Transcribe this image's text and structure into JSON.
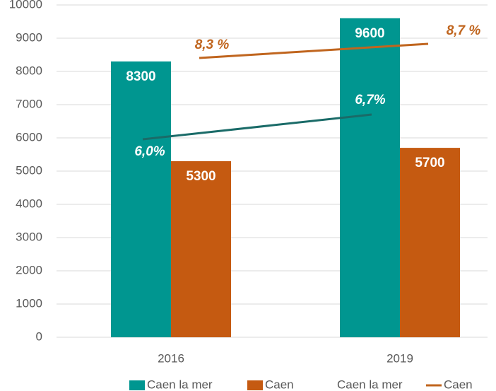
{
  "chart_data": {
    "type": "bar",
    "categories": [
      "2016",
      "2019"
    ],
    "series": [
      {
        "name": "Caen la mer",
        "type": "bar",
        "color": "#009690",
        "values": [
          8300,
          9600
        ]
      },
      {
        "name": "Caen",
        "type": "bar",
        "color": "#c55a11",
        "values": [
          5300,
          5700
        ]
      },
      {
        "name": "Caen la mer",
        "type": "line",
        "axis": "y2",
        "color": "#1a6b68",
        "label_color": "#ffffff",
        "values": [
          6.0,
          6.7
        ],
        "value_labels": [
          "6,0%",
          "6,7%"
        ]
      },
      {
        "name": "Caen",
        "type": "line",
        "axis": "y2",
        "color": "#c0651e",
        "label_color": "#c0651e",
        "values": [
          8.3,
          8.7
        ],
        "value_labels": [
          "8,3 %",
          "8,7 %"
        ]
      }
    ],
    "ylim": [
      0,
      10000
    ],
    "yticks": [
      0,
      1000,
      2000,
      3000,
      4000,
      5000,
      6000,
      7000,
      8000,
      9000,
      10000
    ],
    "y2lim": [
      0.4,
      9.8
    ],
    "grid": true,
    "legend": "bottom"
  }
}
